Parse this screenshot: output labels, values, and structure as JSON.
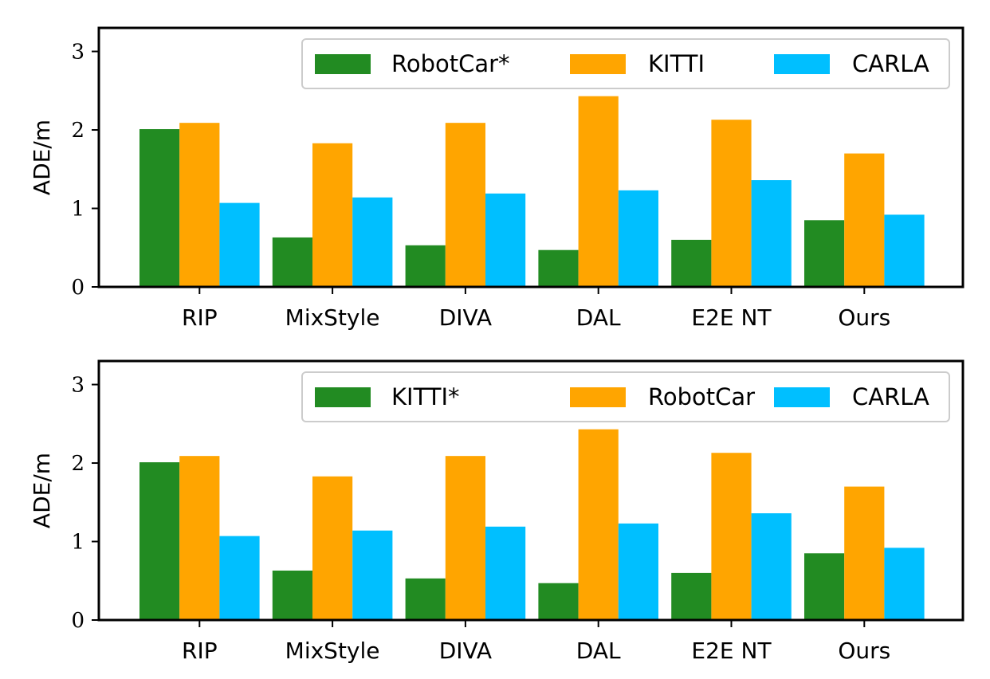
{
  "colors": {
    "green": "#228B22",
    "orange": "#FFA500",
    "blue": "#00BFFF"
  },
  "chart_data": [
    {
      "type": "bar",
      "categories": [
        "RIP",
        "MixStyle",
        "DIVA",
        "DAL",
        "E2E NT",
        "Ours"
      ],
      "series": [
        {
          "name": "RobotCar*",
          "color": "#228B22",
          "values": [
            2.01,
            0.63,
            0.53,
            0.47,
            0.6,
            0.85
          ]
        },
        {
          "name": "KITTI",
          "color": "#FFA500",
          "values": [
            2.09,
            1.83,
            2.09,
            2.43,
            2.13,
            1.7
          ]
        },
        {
          "name": "CARLA",
          "color": "#00BFFF",
          "values": [
            1.07,
            1.14,
            1.19,
            1.23,
            1.36,
            0.92
          ]
        }
      ],
      "ylabel": "ADE/m",
      "ylim": [
        0,
        3.3
      ],
      "yticks": [
        "0",
        "1",
        "2",
        "3"
      ],
      "legend": "top-right"
    },
    {
      "type": "bar",
      "categories": [
        "RIP",
        "MixStyle",
        "DIVA",
        "DAL",
        "E2E NT",
        "Ours"
      ],
      "series": [
        {
          "name": "KITTI*",
          "color": "#228B22",
          "values": [
            2.01,
            0.63,
            0.53,
            0.47,
            0.6,
            0.85
          ]
        },
        {
          "name": "RobotCar",
          "color": "#FFA500",
          "values": [
            2.09,
            1.83,
            2.09,
            2.43,
            2.13,
            1.7
          ]
        },
        {
          "name": "CARLA",
          "color": "#00BFFF",
          "values": [
            1.07,
            1.14,
            1.19,
            1.23,
            1.36,
            0.92
          ]
        }
      ],
      "ylabel": "ADE/m",
      "ylim": [
        0,
        3.3
      ],
      "yticks": [
        "0",
        "1",
        "2",
        "3"
      ],
      "legend": "top-right"
    }
  ]
}
